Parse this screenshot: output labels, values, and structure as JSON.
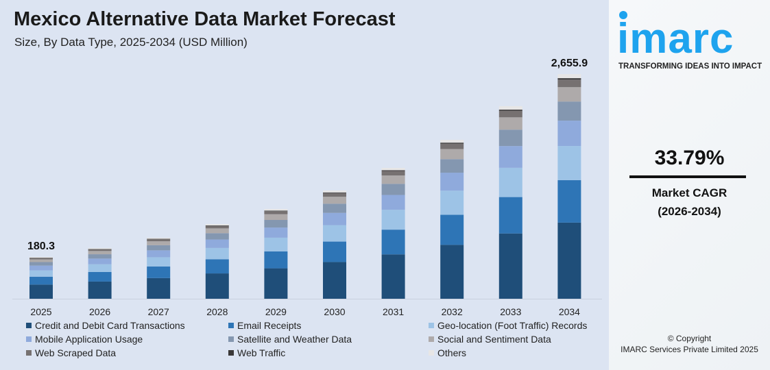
{
  "title": "Mexico Alternative Data Market Forecast",
  "subtitle": "Size, By Data Type, 2025-2034 (USD Million)",
  "brand": {
    "logo": "imarc",
    "tagline": "TRANSFORMING IDEAS INTO IMPACT",
    "color": "#1ea3ee"
  },
  "cagr": {
    "value": "33.79%",
    "label": "Market CAGR",
    "period": "(2026-2034)"
  },
  "copyright": {
    "line1": "© Copyright",
    "line2": "IMARC Services Private Limited 2025"
  },
  "chart_data": {
    "type": "bar",
    "stacked": true,
    "categories": [
      "2025",
      "2026",
      "2027",
      "2028",
      "2029",
      "2030",
      "2031",
      "2032",
      "2033",
      "2034"
    ],
    "totals": [
      180.3,
      301,
      441,
      626,
      830,
      1081,
      1387,
      1767,
      2222,
      2655.9
    ],
    "total_labels": {
      "2025": "180.3",
      "2034": "2,655.9"
    },
    "legend": "bottom",
    "grid": false,
    "series": [
      {
        "name": "Credit and Debit Card Transactions",
        "color": "#1f4e79",
        "values": [
          61.1,
          102.0,
          149.5,
          212.2,
          281.4,
          366.5,
          470.2,
          599.0,
          753.3,
          900.3
        ]
      },
      {
        "name": "Email Receipts",
        "color": "#2e75b6",
        "values": [
          34.1,
          56.9,
          83.3,
          118.3,
          156.9,
          204.3,
          262.1,
          334.0,
          420.0,
          502.0
        ]
      },
      {
        "name": "Geo-location (Foot Traffic) Records",
        "color": "#9dc3e6",
        "values": [
          27.4,
          45.8,
          67.0,
          95.2,
          126.2,
          164.3,
          210.8,
          268.6,
          337.7,
          403.7
        ]
      },
      {
        "name": "Mobile Application Usage",
        "color": "#8faadc",
        "values": [
          20.4,
          34.0,
          49.8,
          70.7,
          93.8,
          122.2,
          156.7,
          199.7,
          251.1,
          300.1
        ]
      },
      {
        "name": "Satellite and Weather Data",
        "color": "#8497b0",
        "values": [
          15.3,
          25.6,
          37.5,
          53.2,
          70.6,
          91.9,
          117.9,
          150.2,
          188.9,
          225.8
        ]
      },
      {
        "name": "Social and Sentiment Data",
        "color": "#aeaaaa",
        "values": [
          11.5,
          19.3,
          28.2,
          40.1,
          53.1,
          69.2,
          88.8,
          113.1,
          142.2,
          170.0
        ]
      },
      {
        "name": "Web Scraped Data",
        "color": "#767171",
        "values": [
          6.1,
          10.2,
          15.0,
          21.3,
          28.2,
          36.8,
          47.2,
          60.1,
          75.5,
          90.3
        ]
      },
      {
        "name": "Web Traffic",
        "color": "#3a3838",
        "values": [
          1.1,
          1.8,
          2.6,
          3.8,
          5.0,
          6.5,
          8.3,
          10.6,
          13.3,
          15.9
        ]
      },
      {
        "name": "Others",
        "color": "#e7e6e6",
        "values": [
          3.2,
          5.4,
          7.9,
          11.3,
          14.9,
          19.5,
          25.0,
          31.8,
          40.0,
          47.8
        ]
      }
    ]
  }
}
